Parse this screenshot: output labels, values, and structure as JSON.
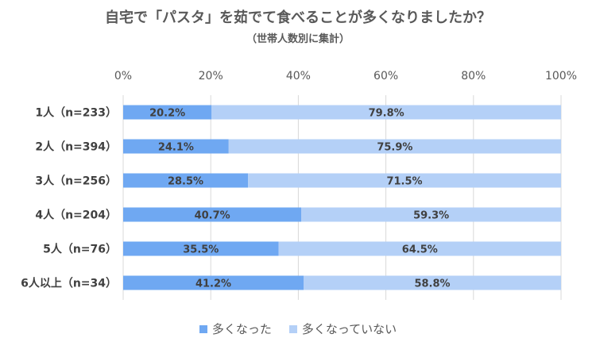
{
  "chart_data": {
    "type": "bar",
    "orientation": "horizontal",
    "stacked": true,
    "title": "自宅で「パスタ」を茹でて食べることが多くなりましたか？",
    "subtitle": "（世帯人数別に集計）",
    "categories": [
      "1人（n=233）",
      "2人（n=394）",
      "3人（n=256）",
      "4人（n=204）",
      "5人（n=76）",
      "6人以上（n=34）"
    ],
    "series": [
      {
        "name": "多くなった",
        "color": "#6fa8f2",
        "values": [
          20.2,
          24.1,
          28.5,
          40.7,
          35.5,
          41.2
        ]
      },
      {
        "name": "多くなっていない",
        "color": "#b4d0f7",
        "values": [
          79.8,
          75.9,
          71.5,
          59.3,
          64.5,
          58.8
        ]
      }
    ],
    "xlim": [
      0,
      100
    ],
    "x_ticks": [
      "0%",
      "20%",
      "40%",
      "60%",
      "80%",
      "100%"
    ],
    "value_suffix": "%",
    "grid": true,
    "legend_position": "bottom"
  }
}
